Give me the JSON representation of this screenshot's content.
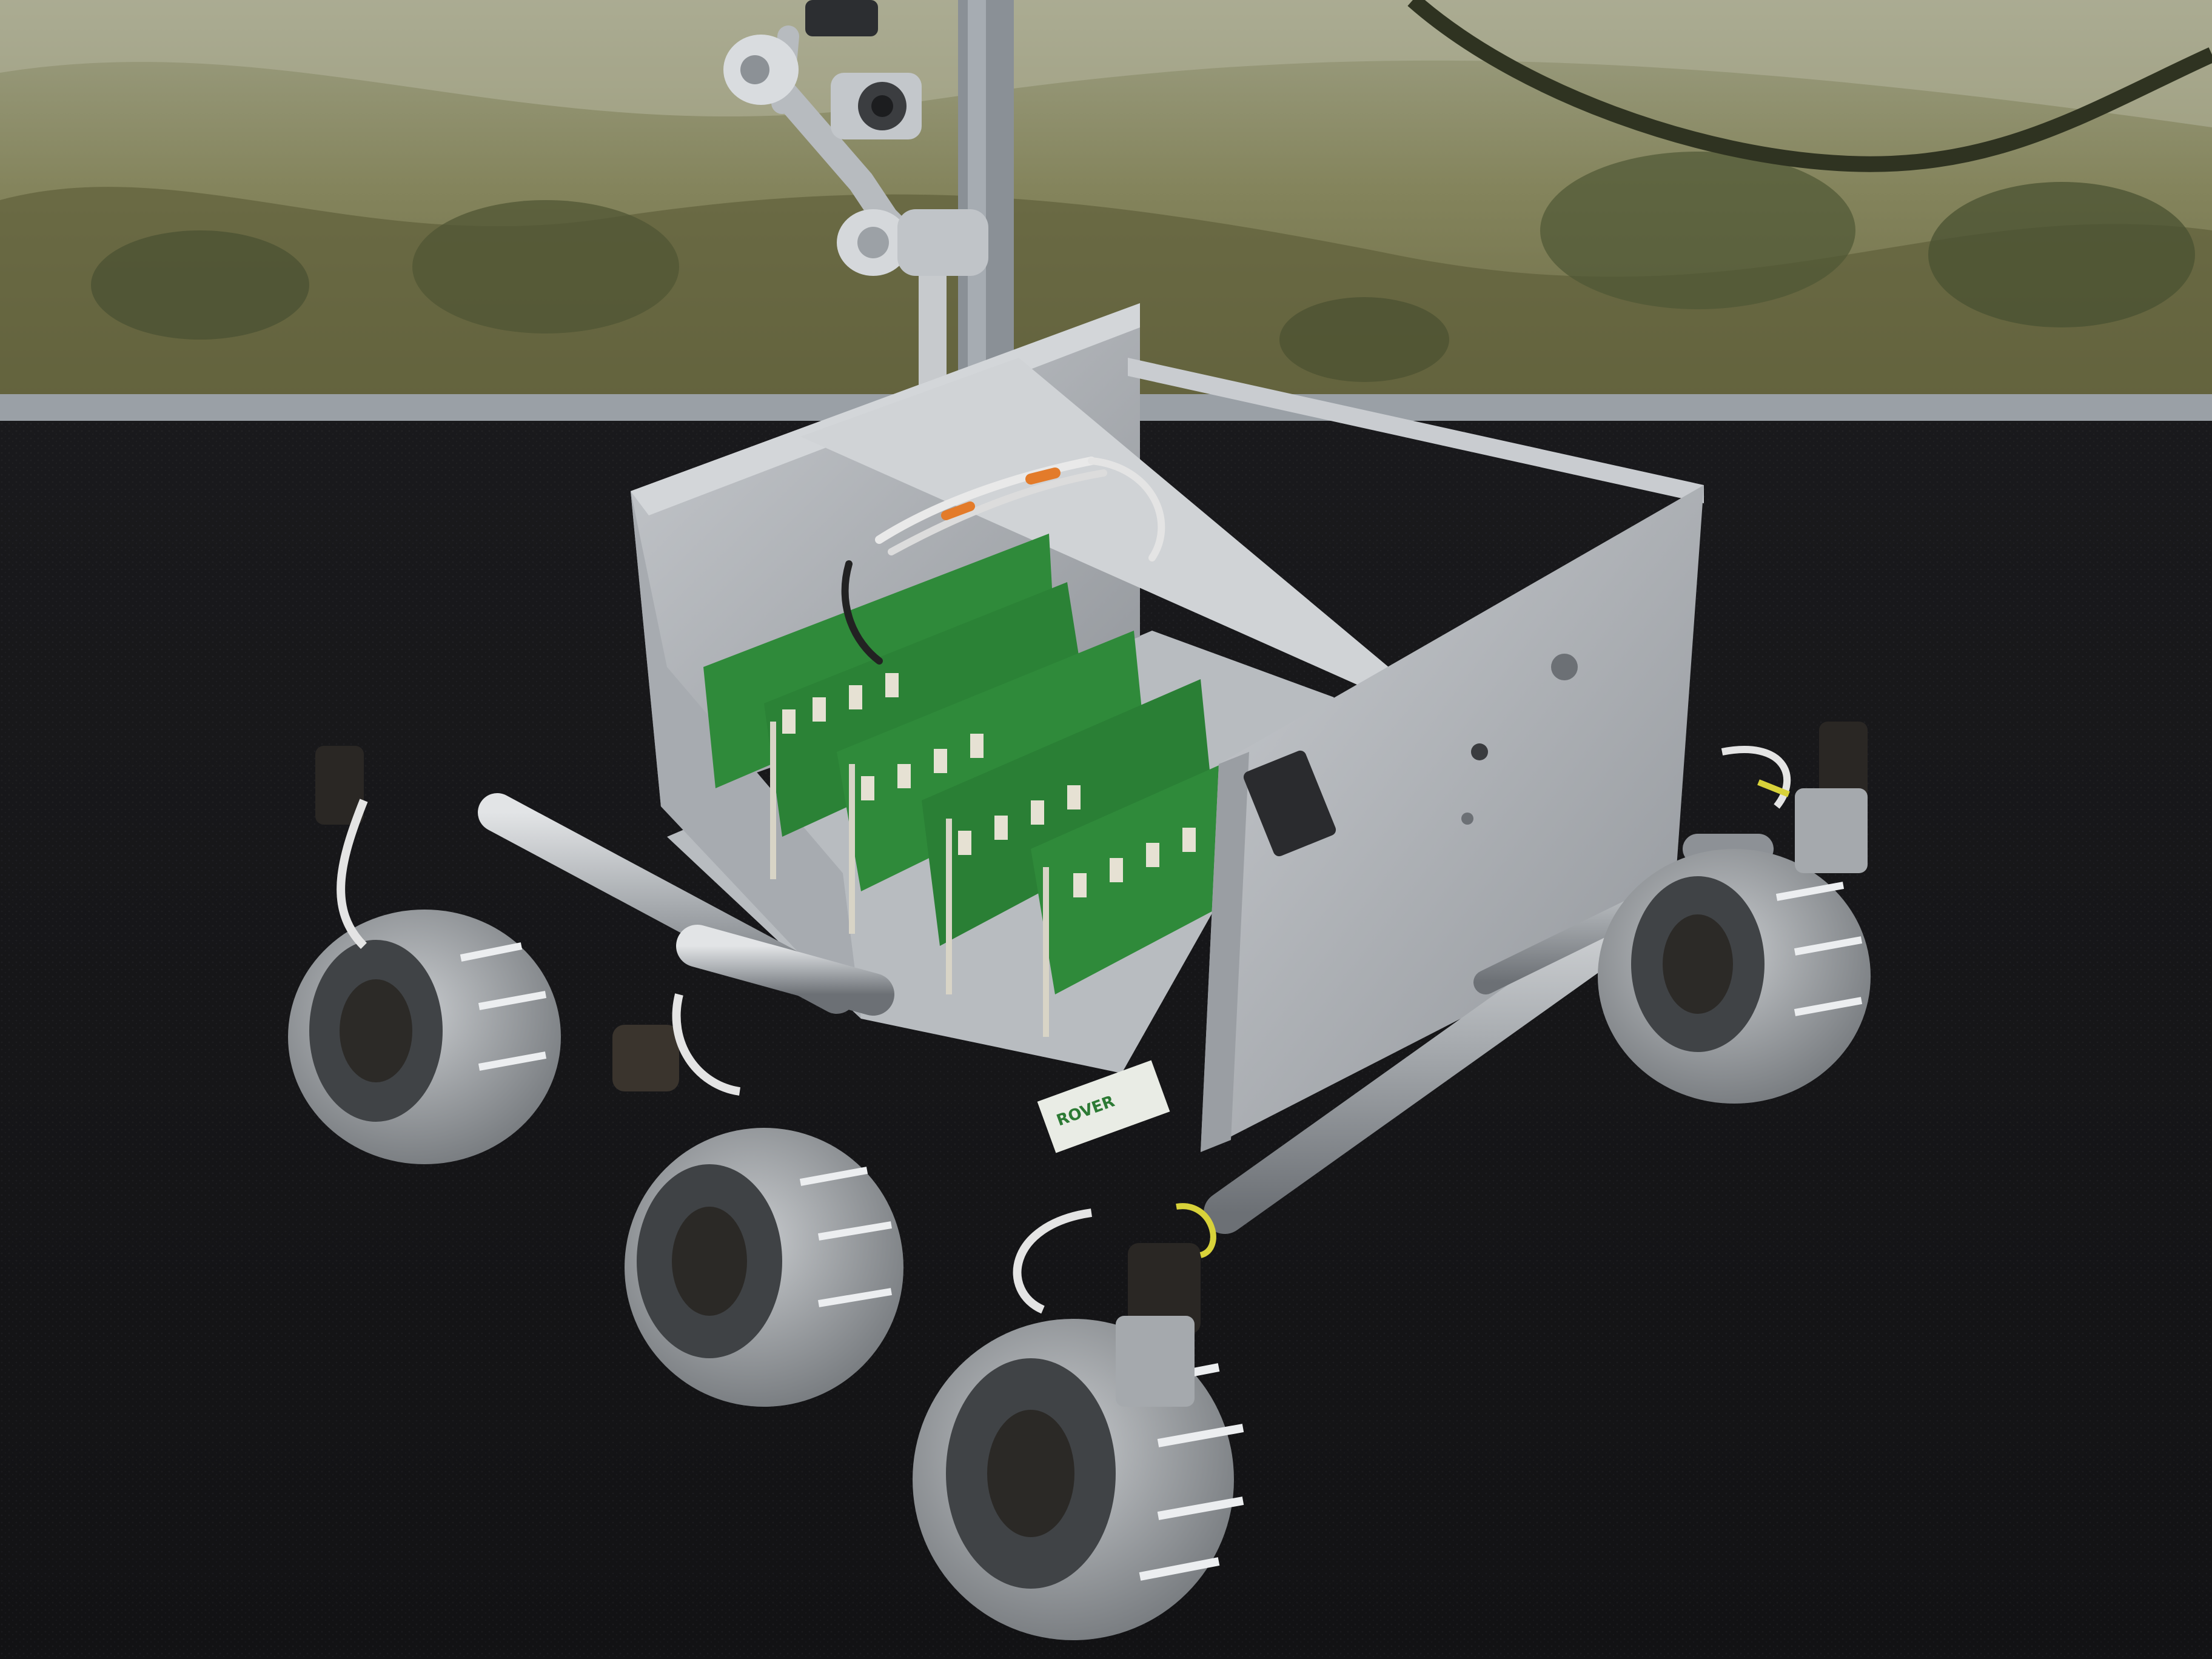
{
  "photo": {
    "colors": {
      "floor": "#141416",
      "wall_photo_green": "#6f7046",
      "wall_photo_sky": "#a9ab8f",
      "aluminium": "#b9bdc1",
      "aluminium_dark": "#7e8388",
      "pcb_green": "#2f8a3a",
      "cable_white": "#e8e8e8",
      "wheel_silver": "#a7aaae",
      "motor_black": "#2a2724"
    },
    "plate_label_text": "ROVER"
  }
}
